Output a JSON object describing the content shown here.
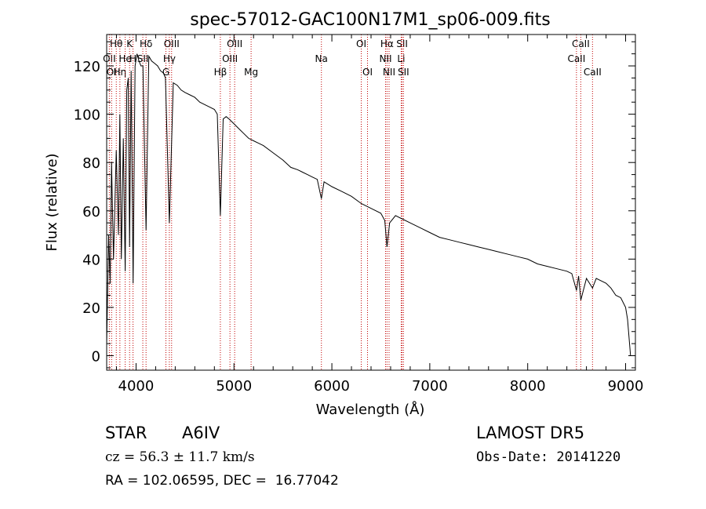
{
  "chart_data": {
    "type": "line",
    "title": "spec-57012-GAC100N17M1_sp06-009.fits",
    "xlabel": "Wavelength (Å)",
    "ylabel": "Flux (relative)",
    "xlim": [
      3700,
      9100
    ],
    "ylim": [
      -6,
      133
    ],
    "xticks": [
      4000,
      5000,
      6000,
      7000,
      8000,
      9000
    ],
    "yticks": [
      0,
      20,
      40,
      60,
      80,
      100,
      120
    ],
    "grid": false,
    "series": [
      {
        "color": "#000000",
        "x": [
          3700,
          3720,
          3735,
          3750,
          3770,
          3798,
          3820,
          3835,
          3850,
          3870,
          3889,
          3905,
          3920,
          3934,
          3950,
          3970,
          3990,
          4010,
          4030,
          4050,
          4070,
          4102,
          4130,
          4160,
          4190,
          4220,
          4250,
          4280,
          4300,
          4340,
          4380,
          4420,
          4460,
          4500,
          4550,
          4600,
          4650,
          4700,
          4750,
          4800,
          4830,
          4861,
          4890,
          4920,
          4950,
          5000,
          5050,
          5100,
          5150,
          5200,
          5250,
          5300,
          5400,
          5500,
          5580,
          5650,
          5700,
          5750,
          5800,
          5850,
          5893,
          5920,
          5960,
          6000,
          6100,
          6200,
          6300,
          6400,
          6500,
          6540,
          6563,
          6590,
          6650,
          6700,
          6800,
          6900,
          7000,
          7100,
          7200,
          7300,
          7400,
          7500,
          7600,
          7700,
          7800,
          7900,
          8000,
          8100,
          8200,
          8300,
          8400,
          8450,
          8498,
          8520,
          8542,
          8600,
          8662,
          8700,
          8750,
          8800,
          8850,
          8900,
          8950,
          9000,
          9020,
          9050
        ],
        "y": [
          5,
          50,
          30,
          80,
          40,
          85,
          50,
          100,
          40,
          90,
          35,
          110,
          115,
          45,
          118,
          30,
          120,
          125,
          122,
          120,
          120,
          52,
          124,
          122,
          121,
          120,
          118,
          117,
          115,
          55,
          113,
          112,
          110,
          109,
          108,
          107,
          105,
          104,
          103,
          102,
          100,
          58,
          98,
          99,
          98,
          96,
          94,
          92,
          90,
          89,
          88,
          87,
          84,
          81,
          78,
          77,
          76,
          75,
          74,
          73,
          65,
          72,
          71,
          70,
          68,
          66,
          63,
          61,
          59,
          56,
          45,
          55,
          58,
          57,
          55,
          53,
          51,
          49,
          48,
          47,
          46,
          45,
          44,
          43,
          42,
          41,
          40,
          38,
          37,
          36,
          35,
          34,
          27,
          33,
          23,
          32,
          28,
          32,
          31,
          30,
          28,
          25,
          24,
          20,
          15,
          0
        ]
      }
    ],
    "lines": [
      {
        "label": "Hθ",
        "x": 3798,
        "row": 0
      },
      {
        "label": "OII",
        "x": 3727,
        "row": 1
      },
      {
        "label": "OI",
        "x": 3750,
        "row": 2
      },
      {
        "label": "Hη",
        "x": 3835,
        "row": 2
      },
      {
        "label": "K",
        "x": 3934,
        "row": 0
      },
      {
        "label": "He",
        "x": 3889,
        "row": 1
      },
      {
        "label": "H",
        "x": 3969,
        "row": 1
      },
      {
        "label": "Hδ",
        "x": 4102,
        "row": 0
      },
      {
        "label": "SII",
        "x": 4069,
        "row": 1
      },
      {
        "label": "OIII",
        "x": 4363,
        "row": 0
      },
      {
        "label": "Hγ",
        "x": 4340,
        "row": 1
      },
      {
        "label": "G",
        "x": 4305,
        "row": 2
      },
      {
        "label": "OIII",
        "x": 5007,
        "row": 0
      },
      {
        "label": "OIII",
        "x": 4959,
        "row": 1
      },
      {
        "label": "Hβ",
        "x": 4861,
        "row": 2
      },
      {
        "label": "Mg",
        "x": 5175,
        "row": 2
      },
      {
        "label": "Na",
        "x": 5893,
        "row": 1
      },
      {
        "label": "OI",
        "x": 6300,
        "row": 0
      },
      {
        "label": "OI",
        "x": 6364,
        "row": 2
      },
      {
        "label": "Hα",
        "x": 6563,
        "row": 0
      },
      {
        "label": "SII",
        "x": 6717,
        "row": 0
      },
      {
        "label": "NII",
        "x": 6548,
        "row": 1
      },
      {
        "label": "Li",
        "x": 6708,
        "row": 1
      },
      {
        "label": "NII",
        "x": 6584,
        "row": 2
      },
      {
        "label": "SII",
        "x": 6731,
        "row": 2
      },
      {
        "label": "CaII",
        "x": 8542,
        "row": 0
      },
      {
        "label": "CaII",
        "x": 8498,
        "row": 1
      },
      {
        "label": "CaII",
        "x": 8662,
        "row": 2
      }
    ]
  },
  "info": {
    "obj_type": "STAR",
    "obj_class": "A6IV",
    "survey": "LAMOST DR5",
    "redshift": "cz = 56.3 ± 11.7 km/s",
    "obs_date": "Obs-Date: 20141220",
    "coords": "RA = 102.06595, DEC =  16.77042"
  }
}
